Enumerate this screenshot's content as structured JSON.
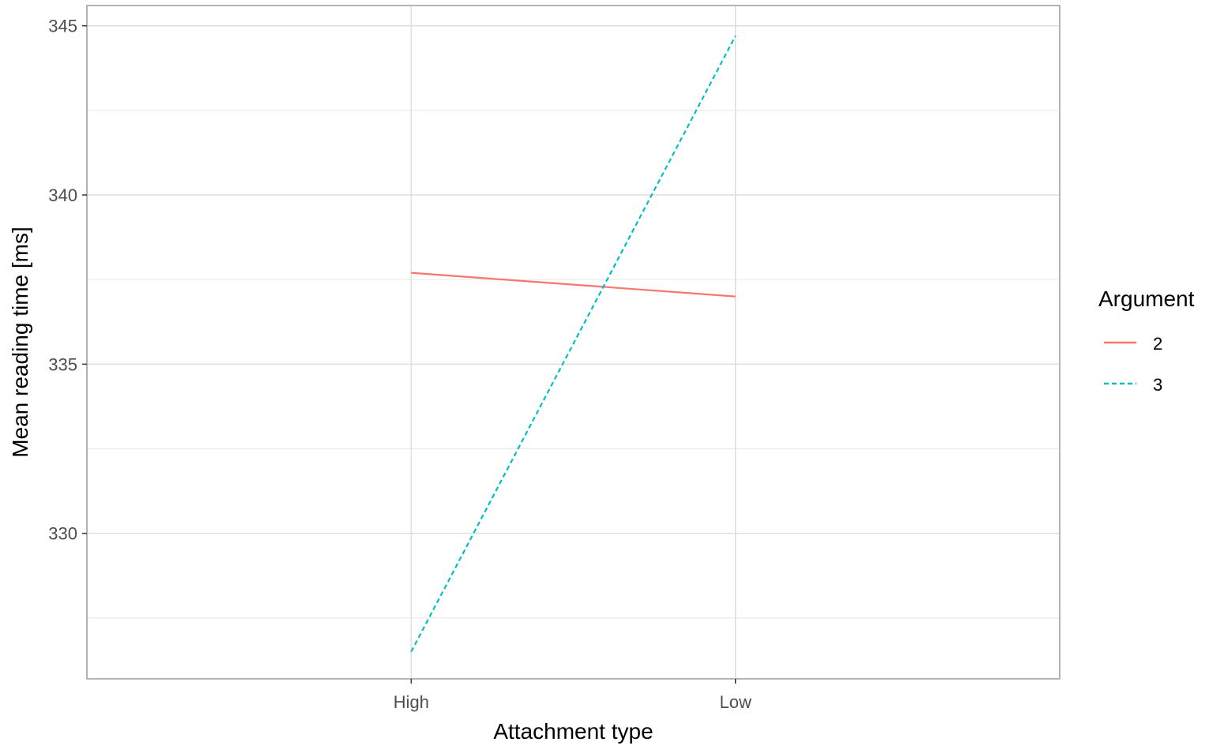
{
  "chart_data": {
    "type": "line",
    "xlabel": "Attachment type",
    "ylabel": "Mean reading time [ms]",
    "categories": [
      "High",
      "Low"
    ],
    "ylim": [
      325.7,
      345.6
    ],
    "yticks": [
      330,
      335,
      340,
      345
    ],
    "grid": true,
    "legend": {
      "title": "Argument",
      "placement": "right"
    },
    "series": [
      {
        "name": "2",
        "values": [
          337.7,
          337.0
        ],
        "color": "#F8766D",
        "linestyle": "solid"
      },
      {
        "name": "3",
        "values": [
          326.5,
          344.7
        ],
        "color": "#00BFC4",
        "linestyle": "dashed"
      }
    ]
  }
}
